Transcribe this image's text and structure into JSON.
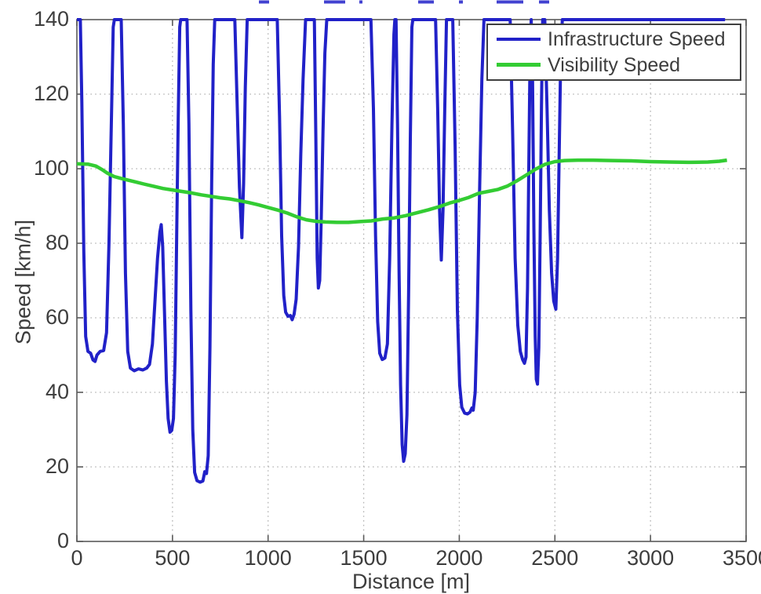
{
  "figure": {
    "background": "#ffffff",
    "axis_color": "#5a5a5a",
    "grid_color": "#b3b3b3",
    "text_color": "#3d3d3d"
  },
  "chart_data": {
    "type": "line",
    "title": "",
    "xlabel": "Distance [m]",
    "ylabel": "Speed [km/h]",
    "xlim": [
      0,
      3500
    ],
    "ylim": [
      0,
      140
    ],
    "xticks": [
      0,
      500,
      1000,
      1500,
      2000,
      2500,
      3000,
      3500
    ],
    "yticks": [
      0,
      20,
      40,
      60,
      80,
      100,
      120,
      140
    ],
    "grid": "dotted",
    "legend_position": "top-right",
    "series": [
      {
        "name": "Infrastructure Speed",
        "color": "#2121c8",
        "width": 4,
        "points": [
          [
            0,
            140
          ],
          [
            18,
            140
          ],
          [
            26,
            118
          ],
          [
            36,
            78
          ],
          [
            46,
            55
          ],
          [
            58,
            51
          ],
          [
            72,
            50.5
          ],
          [
            84,
            48.7
          ],
          [
            95,
            48.3
          ],
          [
            105,
            50
          ],
          [
            122,
            51
          ],
          [
            140,
            51.2
          ],
          [
            155,
            56
          ],
          [
            168,
            80
          ],
          [
            180,
            112
          ],
          [
            190,
            138
          ],
          [
            196,
            140
          ],
          [
            232,
            140
          ],
          [
            243,
            112
          ],
          [
            254,
            72
          ],
          [
            266,
            51
          ],
          [
            280,
            46.5
          ],
          [
            300,
            45.8
          ],
          [
            322,
            46.3
          ],
          [
            345,
            46
          ],
          [
            365,
            46.5
          ],
          [
            380,
            47.5
          ],
          [
            395,
            53
          ],
          [
            408,
            64
          ],
          [
            422,
            76
          ],
          [
            434,
            83
          ],
          [
            441,
            85
          ],
          [
            449,
            79
          ],
          [
            458,
            62
          ],
          [
            468,
            43
          ],
          [
            477,
            33
          ],
          [
            487,
            29.3
          ],
          [
            496,
            29.8
          ],
          [
            505,
            33
          ],
          [
            514,
            50
          ],
          [
            522,
            82
          ],
          [
            530,
            114
          ],
          [
            538,
            138
          ],
          [
            543,
            140
          ],
          [
            576,
            140
          ],
          [
            586,
            112
          ],
          [
            596,
            62
          ],
          [
            606,
            30
          ],
          [
            616,
            18.5
          ],
          [
            628,
            16.3
          ],
          [
            644,
            15.9
          ],
          [
            659,
            16.2
          ],
          [
            669,
            18.7
          ],
          [
            678,
            18.2
          ],
          [
            687,
            23
          ],
          [
            696,
            52
          ],
          [
            705,
            96
          ],
          [
            713,
            128
          ],
          [
            721,
            140
          ],
          [
            826,
            140
          ],
          [
            838,
            118
          ],
          [
            850,
            95
          ],
          [
            863,
            81.5
          ],
          [
            872,
            96
          ],
          [
            881,
            122
          ],
          [
            891,
            140
          ],
          [
            1048,
            140
          ],
          [
            1060,
            114
          ],
          [
            1071,
            82
          ],
          [
            1082,
            66
          ],
          [
            1092,
            61.5
          ],
          [
            1104,
            60.4
          ],
          [
            1116,
            60.6
          ],
          [
            1126,
            59.5
          ],
          [
            1136,
            61
          ],
          [
            1147,
            65
          ],
          [
            1159,
            79
          ],
          [
            1171,
            104
          ],
          [
            1183,
            124
          ],
          [
            1196,
            140
          ],
          [
            1242,
            140
          ],
          [
            1250,
            108
          ],
          [
            1257,
            76
          ],
          [
            1263,
            68
          ],
          [
            1270,
            70
          ],
          [
            1278,
            87
          ],
          [
            1287,
            110
          ],
          [
            1297,
            131
          ],
          [
            1307,
            140
          ],
          [
            1538,
            140
          ],
          [
            1551,
            116
          ],
          [
            1562,
            82
          ],
          [
            1573,
            59
          ],
          [
            1584,
            50.5
          ],
          [
            1597,
            48.8
          ],
          [
            1611,
            49.2
          ],
          [
            1624,
            53
          ],
          [
            1636,
            76
          ],
          [
            1648,
            112
          ],
          [
            1658,
            136
          ],
          [
            1663,
            140
          ],
          [
            1669,
            140
          ],
          [
            1677,
            112
          ],
          [
            1685,
            72
          ],
          [
            1693,
            42
          ],
          [
            1701,
            26
          ],
          [
            1709,
            21.5
          ],
          [
            1717,
            23.5
          ],
          [
            1726,
            34
          ],
          [
            1735,
            66
          ],
          [
            1744,
            108
          ],
          [
            1752,
            138
          ],
          [
            1757,
            140
          ],
          [
            1876,
            140
          ],
          [
            1887,
            116
          ],
          [
            1897,
            89
          ],
          [
            1906,
            75.5
          ],
          [
            1915,
            89
          ],
          [
            1924,
            116
          ],
          [
            1933,
            140
          ],
          [
            1966,
            140
          ],
          [
            1978,
            106
          ],
          [
            1990,
            62
          ],
          [
            2002,
            42
          ],
          [
            2013,
            36
          ],
          [
            2028,
            34.4
          ],
          [
            2043,
            34.2
          ],
          [
            2056,
            34.7
          ],
          [
            2066,
            35.8
          ],
          [
            2073,
            35.2
          ],
          [
            2083,
            40
          ],
          [
            2094,
            60
          ],
          [
            2106,
            94
          ],
          [
            2118,
            124
          ],
          [
            2129,
            140
          ],
          [
            2266,
            140
          ],
          [
            2279,
            110
          ],
          [
            2292,
            76
          ],
          [
            2306,
            58
          ],
          [
            2319,
            51
          ],
          [
            2331,
            48.8
          ],
          [
            2341,
            47.8
          ],
          [
            2349,
            49.5
          ],
          [
            2357,
            68
          ],
          [
            2364,
            102
          ],
          [
            2371,
            133
          ],
          [
            2376,
            140
          ],
          [
            2383,
            124
          ],
          [
            2390,
            84
          ],
          [
            2397,
            55
          ],
          [
            2403,
            43.5
          ],
          [
            2409,
            42.2
          ],
          [
            2416,
            52
          ],
          [
            2423,
            82
          ],
          [
            2430,
            117
          ],
          [
            2436,
            140
          ],
          [
            2447,
            140
          ],
          [
            2459,
            116
          ],
          [
            2471,
            89
          ],
          [
            2483,
            72
          ],
          [
            2494,
            64.5
          ],
          [
            2505,
            62.3
          ],
          [
            2514,
            76
          ],
          [
            2523,
            106
          ],
          [
            2531,
            131
          ],
          [
            2539,
            140
          ],
          [
            3390,
            140
          ]
        ]
      },
      {
        "name": "Visibility Speed",
        "color": "#33cc33",
        "width": 4.5,
        "points": [
          [
            0,
            101.3
          ],
          [
            60,
            101.2
          ],
          [
            100,
            100.7
          ],
          [
            130,
            99.8
          ],
          [
            160,
            98.8
          ],
          [
            195,
            97.9
          ],
          [
            230,
            97.4
          ],
          [
            270,
            96.9
          ],
          [
            310,
            96.4
          ],
          [
            350,
            95.9
          ],
          [
            400,
            95.3
          ],
          [
            450,
            94.7
          ],
          [
            500,
            94.3
          ],
          [
            550,
            93.9
          ],
          [
            600,
            93.5
          ],
          [
            650,
            93
          ],
          [
            700,
            92.6
          ],
          [
            750,
            92.2
          ],
          [
            800,
            91.9
          ],
          [
            850,
            91.4
          ],
          [
            900,
            90.9
          ],
          [
            950,
            90.3
          ],
          [
            1000,
            89.6
          ],
          [
            1050,
            88.9
          ],
          [
            1100,
            88.1
          ],
          [
            1150,
            87.1
          ],
          [
            1200,
            86.3
          ],
          [
            1250,
            85.9
          ],
          [
            1300,
            85.7
          ],
          [
            1360,
            85.6
          ],
          [
            1420,
            85.6
          ],
          [
            1480,
            85.8
          ],
          [
            1540,
            86
          ],
          [
            1600,
            86.5
          ],
          [
            1660,
            86.8
          ],
          [
            1720,
            87.4
          ],
          [
            1780,
            88.2
          ],
          [
            1840,
            89
          ],
          [
            1900,
            89.9
          ],
          [
            1950,
            90.8
          ],
          [
            2000,
            91.5
          ],
          [
            2050,
            92.3
          ],
          [
            2100,
            93.4
          ],
          [
            2150,
            93.9
          ],
          [
            2200,
            94.4
          ],
          [
            2250,
            95.3
          ],
          [
            2300,
            96.7
          ],
          [
            2350,
            98.3
          ],
          [
            2400,
            99.9
          ],
          [
            2450,
            101.2
          ],
          [
            2500,
            101.9
          ],
          [
            2550,
            102.2
          ],
          [
            2620,
            102.3
          ],
          [
            2700,
            102.3
          ],
          [
            2800,
            102.2
          ],
          [
            2900,
            102.1
          ],
          [
            3000,
            101.9
          ],
          [
            3100,
            101.8
          ],
          [
            3200,
            101.7
          ],
          [
            3300,
            101.8
          ],
          [
            3360,
            102
          ],
          [
            3400,
            102.3
          ]
        ]
      }
    ],
    "top_edge_artifacts": [
      [
        330,
        343
      ],
      [
        413,
        440
      ],
      [
        458,
        462
      ],
      [
        533,
        553
      ],
      [
        585,
        590
      ],
      [
        633,
        667
      ],
      [
        687,
        700
      ]
    ]
  }
}
